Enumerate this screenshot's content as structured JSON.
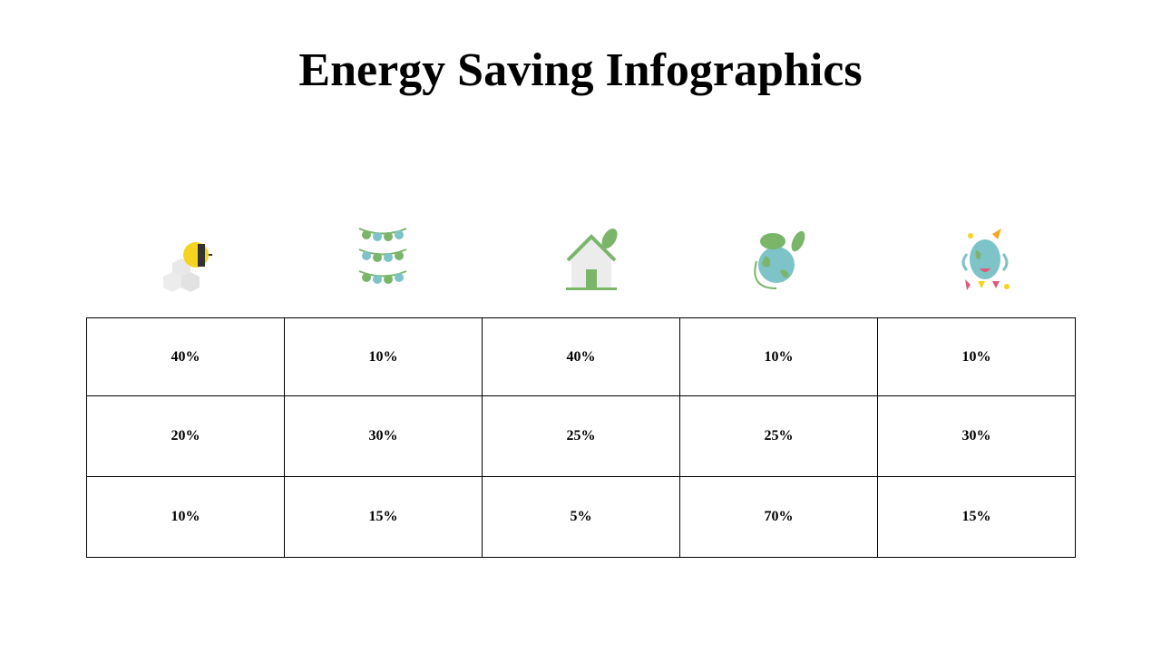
{
  "title": "Energy Saving Infographics",
  "table": {
    "rows": [
      [
        "40%",
        "10%",
        "40%",
        "10%",
        "10%"
      ],
      [
        "20%",
        "30%",
        "25%",
        "25%",
        "30%"
      ],
      [
        "10%",
        "15%",
        "5%",
        "70%",
        "15%"
      ]
    ]
  }
}
